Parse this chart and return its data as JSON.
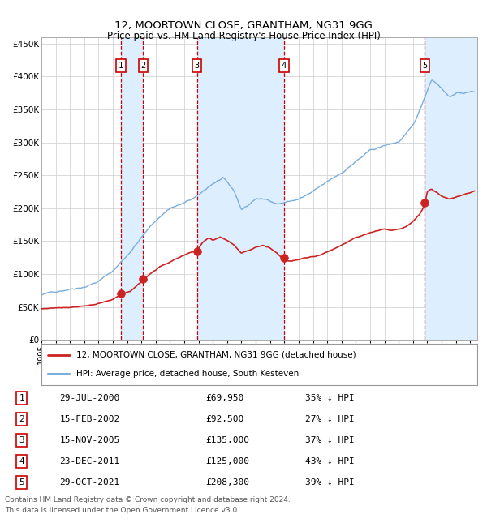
{
  "title": "12, MOORTOWN CLOSE, GRANTHAM, NG31 9GG",
  "subtitle": "Price paid vs. HM Land Registry's House Price Index (HPI)",
  "ylim": [
    0,
    460000
  ],
  "yticks": [
    0,
    50000,
    100000,
    150000,
    200000,
    250000,
    300000,
    350000,
    400000,
    450000
  ],
  "ytick_labels": [
    "£0",
    "£50K",
    "£100K",
    "£150K",
    "£200K",
    "£250K",
    "£300K",
    "£350K",
    "£400K",
    "£450K"
  ],
  "hpi_color": "#7aaddb",
  "price_color": "#cc2222",
  "vline_color": "#cc0000",
  "shade_color": "#ddeeff",
  "background_color": "#ffffff",
  "grid_color": "#cccccc",
  "sales": [
    {
      "date_decimal": 2000.57,
      "price": 69950,
      "label": "1"
    },
    {
      "date_decimal": 2002.12,
      "price": 92500,
      "label": "2"
    },
    {
      "date_decimal": 2005.88,
      "price": 135000,
      "label": "3"
    },
    {
      "date_decimal": 2011.98,
      "price": 125000,
      "label": "4"
    },
    {
      "date_decimal": 2021.83,
      "price": 208300,
      "label": "5"
    }
  ],
  "legend_line1": "12, MOORTOWN CLOSE, GRANTHAM, NG31 9GG (detached house)",
  "legend_line2": "HPI: Average price, detached house, South Kesteven",
  "legend_color1": "#cc2222",
  "legend_color2": "#7aaddb",
  "table_rows": [
    {
      "num": "1",
      "date": "29-JUL-2000",
      "price": "£69,950",
      "hpi": "35% ↓ HPI"
    },
    {
      "num": "2",
      "date": "15-FEB-2002",
      "price": "£92,500",
      "hpi": "27% ↓ HPI"
    },
    {
      "num": "3",
      "date": "15-NOV-2005",
      "price": "£135,000",
      "hpi": "37% ↓ HPI"
    },
    {
      "num": "4",
      "date": "23-DEC-2011",
      "price": "£125,000",
      "hpi": "43% ↓ HPI"
    },
    {
      "num": "5",
      "date": "29-OCT-2021",
      "price": "£208,300",
      "hpi": "39% ↓ HPI"
    }
  ],
  "footer_line1": "Contains HM Land Registry data © Crown copyright and database right 2024.",
  "footer_line2": "This data is licensed under the Open Government Licence v3.0.",
  "xmin": 1995.0,
  "xmax": 2025.5
}
